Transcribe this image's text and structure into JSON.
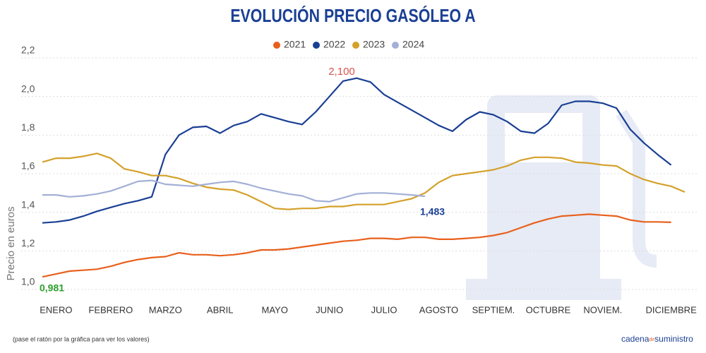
{
  "chart_data": {
    "type": "line",
    "title": "EVOLUCIÓN PRECIO GASÓLEO A",
    "y_label": "Precio en euros",
    "footnote": "(pase el ratón por la gráfica para ver los valores)",
    "brand": [
      "cadena",
      "de",
      "suministro"
    ],
    "annotations": [
      "2,100",
      "0,981",
      "1,483"
    ],
    "grid": true,
    "ylim": [
      1.0,
      2.2
    ],
    "yticks": [
      {
        "value": 1.0,
        "label": "1,0"
      },
      {
        "value": 1.2,
        "label": "1,2"
      },
      {
        "value": 1.4,
        "label": "1,4"
      },
      {
        "value": 1.6,
        "label": "1,6"
      },
      {
        "value": 1.8,
        "label": "1,8"
      },
      {
        "value": 2.0,
        "label": "2,0"
      },
      {
        "value": 2.2,
        "label": "2,2"
      }
    ],
    "categories": [
      null,
      "ENERO",
      null,
      null,
      null,
      "FEBRERO",
      null,
      null,
      null,
      "MARZO",
      null,
      null,
      null,
      "ABRIL",
      null,
      null,
      null,
      "MAYO",
      null,
      null,
      null,
      "JUNIO",
      null,
      null,
      null,
      "JULIO",
      null,
      null,
      null,
      "AGOSTO",
      null,
      null,
      null,
      "SEPTIEM.",
      null,
      null,
      null,
      "OCTUBRE",
      null,
      null,
      null,
      "NOVIEM.",
      null,
      null,
      null,
      null,
      "DICIEMBRE",
      null
    ],
    "series": [
      {
        "name": "2021",
        "color": "#e8601c",
        "values": [
          1.065,
          1.08,
          1.095,
          1.1,
          1.105,
          1.12,
          1.14,
          1.155,
          1.165,
          1.17,
          1.19,
          1.18,
          1.18,
          1.175,
          1.18,
          1.19,
          1.205,
          1.205,
          1.21,
          1.22,
          1.23,
          1.24,
          1.25,
          1.255,
          1.265,
          1.265,
          1.26,
          1.27,
          1.27,
          1.26,
          1.26,
          1.265,
          1.27,
          1.28,
          1.295,
          1.32,
          1.345,
          1.365,
          1.38,
          1.385,
          1.39,
          1.385,
          1.38,
          1.36,
          1.35,
          1.35,
          1.348,
          null
        ]
      },
      {
        "name": "2022",
        "color": "#1a3f94",
        "values": [
          1.345,
          1.35,
          1.36,
          1.38,
          1.405,
          1.425,
          1.445,
          1.46,
          1.48,
          1.7,
          1.8,
          1.84,
          1.845,
          1.81,
          1.85,
          1.87,
          1.91,
          1.89,
          1.87,
          1.855,
          1.92,
          2.0,
          2.08,
          2.095,
          2.075,
          2.01,
          1.97,
          1.93,
          1.89,
          1.85,
          1.82,
          1.88,
          1.92,
          1.905,
          1.87,
          1.82,
          1.81,
          1.86,
          1.955,
          1.975,
          1.975,
          1.965,
          1.94,
          1.83,
          1.76,
          1.7,
          1.645,
          null
        ]
      },
      {
        "name": "2023",
        "color": "#d4a12a",
        "values": [
          1.66,
          1.68,
          1.68,
          1.69,
          1.705,
          1.68,
          1.625,
          1.61,
          1.59,
          1.59,
          1.575,
          1.55,
          1.53,
          1.52,
          1.515,
          1.49,
          1.455,
          1.42,
          1.415,
          1.42,
          1.42,
          1.43,
          1.43,
          1.44,
          1.44,
          1.44,
          1.455,
          1.47,
          1.5,
          1.555,
          1.59,
          1.6,
          1.61,
          1.62,
          1.64,
          1.67,
          1.685,
          1.685,
          1.68,
          1.66,
          1.655,
          1.645,
          1.64,
          1.6,
          1.57,
          1.55,
          1.535,
          1.505
        ]
      },
      {
        "name": "2024",
        "color": "#a3b0d6",
        "values": [
          1.49,
          1.49,
          1.48,
          1.485,
          1.495,
          1.51,
          1.535,
          1.56,
          1.565,
          1.545,
          1.54,
          1.535,
          1.545,
          1.555,
          1.56,
          1.545,
          1.525,
          1.51,
          1.495,
          1.485,
          1.46,
          1.455,
          1.475,
          1.495,
          1.5,
          1.5,
          1.495,
          1.49,
          1.483,
          null,
          null,
          null,
          null,
          null,
          null,
          null,
          null,
          null,
          null,
          null,
          null,
          null,
          null,
          null,
          null,
          null,
          null,
          null
        ]
      }
    ]
  }
}
